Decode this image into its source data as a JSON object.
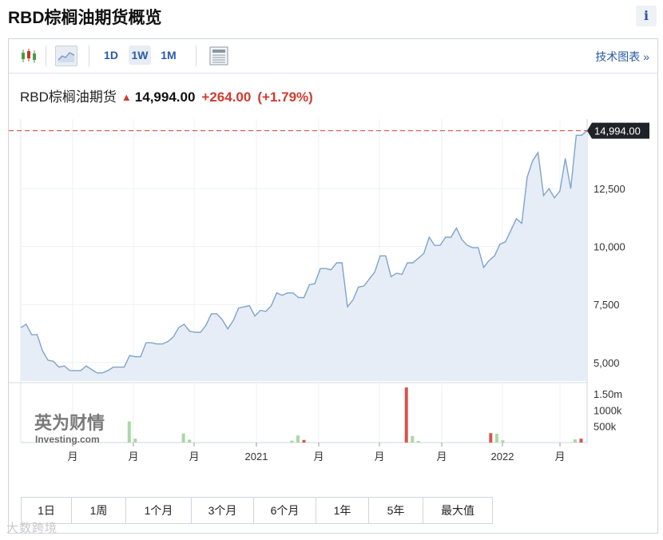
{
  "page": {
    "title": "RBD棕榈油期货概览",
    "info_label": "i"
  },
  "toolbar": {
    "intervals": [
      "1D",
      "1W",
      "1M"
    ],
    "active_interval": "1W",
    "tech_link": "技术图表 »",
    "icons": [
      "candlestick-icon",
      "line-chart-icon",
      "table-icon"
    ]
  },
  "quote": {
    "name": "RBD棕榈油期货",
    "direction": "up",
    "price": "14,994.00",
    "change": "+264.00",
    "change_pct": "(+1.79%)"
  },
  "ranges": [
    "1日",
    "1周",
    "1个月",
    "3个月",
    "6个月",
    "1年",
    "5年",
    "最大值"
  ],
  "watermark": "大数跨境",
  "logo": {
    "cn": "英为财情",
    "en": "Investing.com"
  },
  "colors": {
    "line": "#7fa3cc",
    "area": "#e6edf6",
    "up": "#d23a2f",
    "vol_up": "#a9d8a5",
    "vol_down": "#d9534f"
  },
  "chart_data": {
    "type": "line",
    "x_ticks": [
      "月",
      "月",
      "月",
      "2021",
      "月",
      "月",
      "月",
      "2022",
      "月"
    ],
    "y_ticks": [
      "5,000",
      "7,500",
      "10,000",
      "12,500"
    ],
    "ylim": [
      4200,
      15500
    ],
    "last_price_label": "14,994.00",
    "price_values": [
      6500,
      6650,
      6200,
      6200,
      5500,
      5100,
      5050,
      4800,
      4850,
      4650,
      4650,
      4650,
      4850,
      4700,
      4550,
      4550,
      4650,
      4800,
      4800,
      4800,
      5300,
      5250,
      5250,
      5850,
      5850,
      5800,
      5800,
      5900,
      6100,
      6500,
      6650,
      6350,
      6300,
      6300,
      6600,
      7100,
      7100,
      6850,
      6450,
      6800,
      7350,
      7400,
      7450,
      7000,
      7250,
      7200,
      7450,
      8000,
      7900,
      8000,
      8000,
      7800,
      7800,
      8350,
      8400,
      9050,
      9050,
      9000,
      9300,
      9300,
      7400,
      7700,
      8250,
      8300,
      8600,
      8900,
      9600,
      9600,
      8700,
      8850,
      8800,
      9300,
      9300,
      9500,
      9700,
      10400,
      10050,
      10050,
      10400,
      10400,
      10800,
      10300,
      10050,
      9950,
      9950,
      9100,
      9400,
      9600,
      10100,
      10200,
      10700,
      11200,
      11000,
      13000,
      13700,
      14050,
      12200,
      12500,
      12100,
      12400,
      13800,
      12500,
      14800,
      14800,
      14994
    ],
    "volume_ylim": [
      0,
      1800000
    ],
    "volume_ticks": [
      "1.50m",
      "1000k",
      "500k"
    ],
    "volume_values": [
      {
        "x": 18,
        "v": 650000,
        "dir": "up"
      },
      {
        "x": 19,
        "v": 120000,
        "dir": "up"
      },
      {
        "x": 27,
        "v": 280000,
        "dir": "up"
      },
      {
        "x": 28,
        "v": 90000,
        "dir": "up"
      },
      {
        "x": 45,
        "v": 60000,
        "dir": "up"
      },
      {
        "x": 46,
        "v": 220000,
        "dir": "up"
      },
      {
        "x": 47,
        "v": 80000,
        "dir": "down"
      },
      {
        "x": 64,
        "v": 1700000,
        "dir": "down"
      },
      {
        "x": 65,
        "v": 200000,
        "dir": "up"
      },
      {
        "x": 66,
        "v": 50000,
        "dir": "up"
      },
      {
        "x": 78,
        "v": 290000,
        "dir": "down"
      },
      {
        "x": 79,
        "v": 270000,
        "dir": "up"
      },
      {
        "x": 80,
        "v": 70000,
        "dir": "up"
      },
      {
        "x": 92,
        "v": 100000,
        "dir": "up"
      },
      {
        "x": 93,
        "v": 120000,
        "dir": "down"
      }
    ],
    "volume_count": 95
  }
}
